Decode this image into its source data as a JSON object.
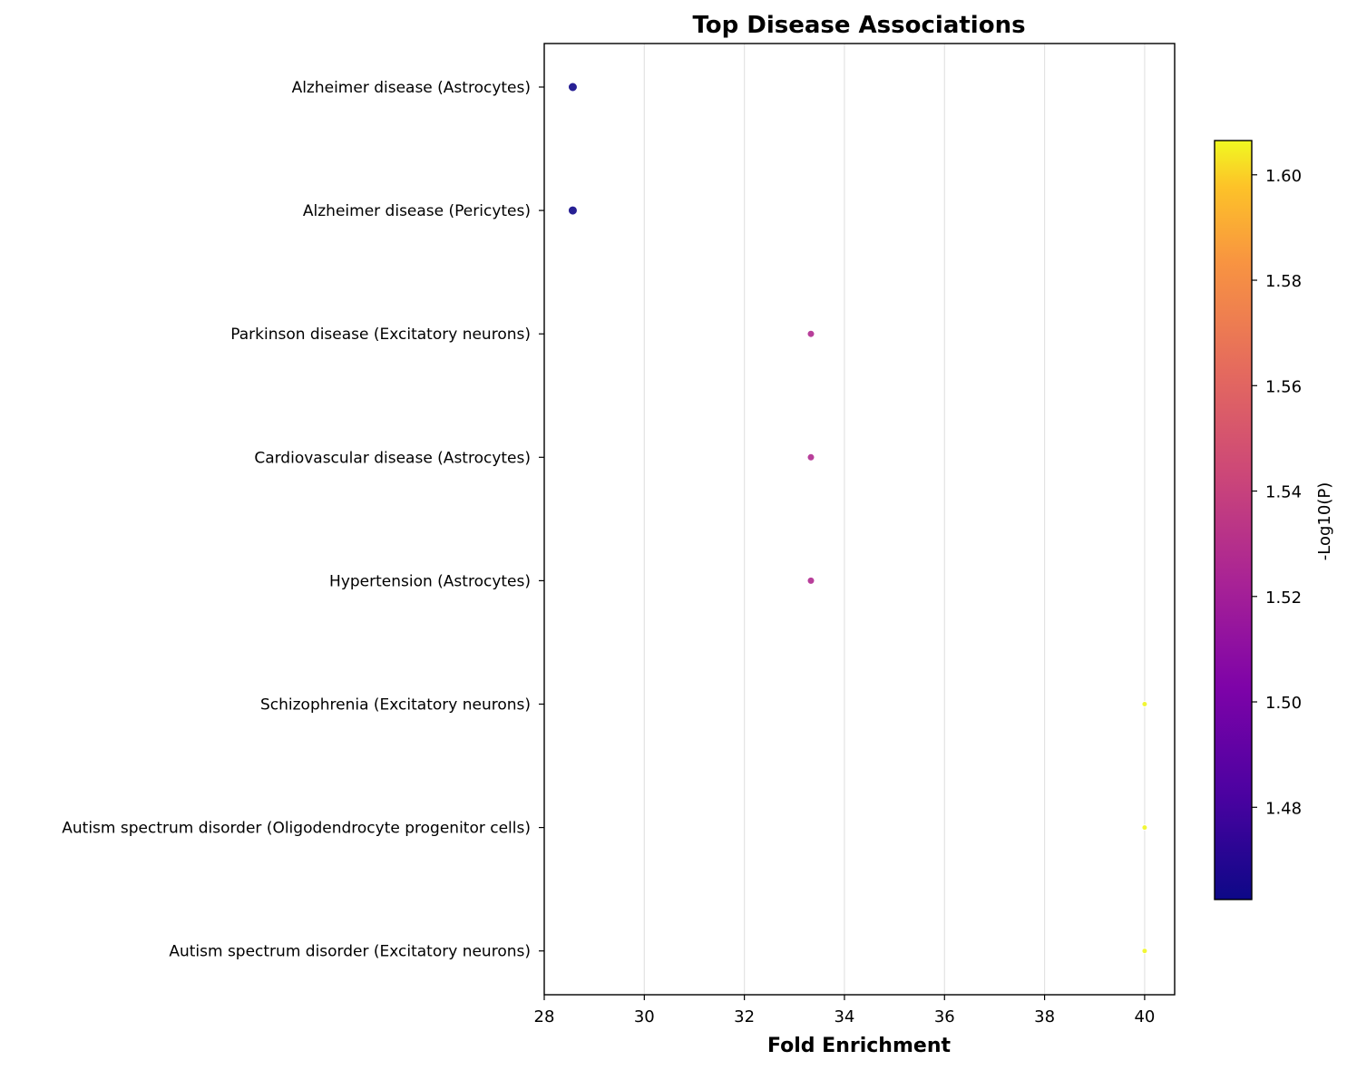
{
  "chart_data": {
    "type": "scatter",
    "title": "Top Disease Associations",
    "xlabel": "Fold Enrichment",
    "ylabel": "",
    "xlim": [
      28,
      40.6
    ],
    "xticks": [
      28,
      30,
      32,
      34,
      36,
      38,
      40
    ],
    "grid": "vertical",
    "categories": [
      "Alzheimer disease (Astrocytes)",
      "Alzheimer disease (Pericytes)",
      "Parkinson disease (Excitatory neurons)",
      "Cardiovascular disease (Astrocytes)",
      "Hypertension (Astrocytes)",
      "Schizophrenia (Excitatory neurons)",
      "Autism spectrum disorder (Oligodendrocyte progenitor cells)",
      "Autism spectrum disorder (Excitatory neurons)"
    ],
    "points": [
      {
        "category": "Alzheimer disease (Astrocytes)",
        "fold_enrichment": 28.57,
        "neg_log10_p": 1.463,
        "size": 5
      },
      {
        "category": "Alzheimer disease (Pericytes)",
        "fold_enrichment": 28.57,
        "neg_log10_p": 1.463,
        "size": 5
      },
      {
        "category": "Parkinson disease (Excitatory neurons)",
        "fold_enrichment": 33.33,
        "neg_log10_p": 1.527,
        "size": 4
      },
      {
        "category": "Cardiovascular disease (Astrocytes)",
        "fold_enrichment": 33.33,
        "neg_log10_p": 1.527,
        "size": 4
      },
      {
        "category": "Hypertension (Astrocytes)",
        "fold_enrichment": 33.33,
        "neg_log10_p": 1.527,
        "size": 4
      },
      {
        "category": "Schizophrenia (Excitatory neurons)",
        "fold_enrichment": 40.0,
        "neg_log10_p": 1.606,
        "size": 3
      },
      {
        "category": "Autism spectrum disorder (Oligodendrocyte progenitor cells)",
        "fold_enrichment": 40.0,
        "neg_log10_p": 1.606,
        "size": 3
      },
      {
        "category": "Autism spectrum disorder (Excitatory neurons)",
        "fold_enrichment": 40.0,
        "neg_log10_p": 1.606,
        "size": 3
      }
    ],
    "colorbar": {
      "label": "-Log10(P)",
      "colormap": "plasma",
      "range": [
        1.4625,
        1.6065
      ],
      "ticks": [
        1.48,
        1.5,
        1.52,
        1.54,
        1.56,
        1.58,
        1.6
      ],
      "tick_labels": [
        "1.48",
        "1.50",
        "1.52",
        "1.54",
        "1.56",
        "1.58",
        "1.60"
      ]
    }
  }
}
